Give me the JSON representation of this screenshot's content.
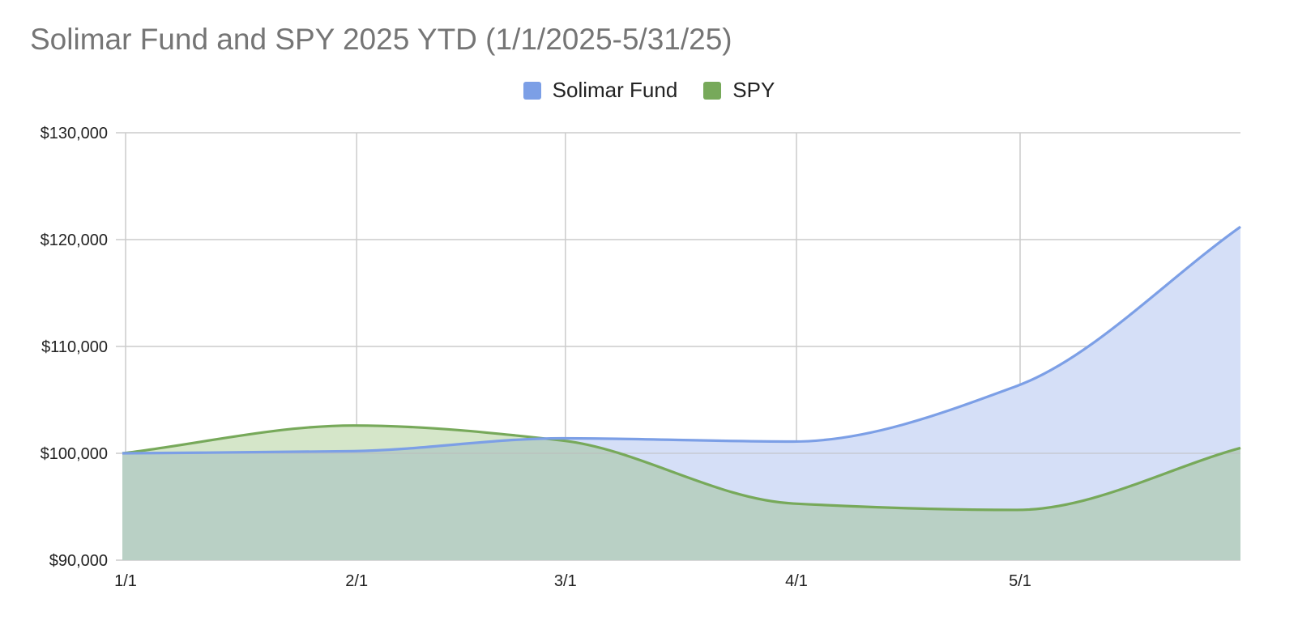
{
  "chart_data": {
    "type": "area",
    "title": "Solimar Fund and SPY 2025 YTD (1/1/2025-5/31/25)",
    "xlabel": "",
    "ylabel": "",
    "x_dates": [
      "2025-01-01",
      "2025-02-01",
      "2025-03-01",
      "2025-04-01",
      "2025-05-01",
      "2025-05-31"
    ],
    "x_ticks": [
      {
        "date": "2025-01-01",
        "label": "1/1"
      },
      {
        "date": "2025-02-01",
        "label": "2/1"
      },
      {
        "date": "2025-03-01",
        "label": "3/1"
      },
      {
        "date": "2025-04-01",
        "label": "4/1"
      },
      {
        "date": "2025-05-01",
        "label": "5/1"
      }
    ],
    "y_ticks": [
      {
        "value": 90000,
        "label": "$90,000"
      },
      {
        "value": 100000,
        "label": "$100,000"
      },
      {
        "value": 110000,
        "label": "$110,000"
      },
      {
        "value": 120000,
        "label": "$120,000"
      },
      {
        "value": 130000,
        "label": "$130,000"
      }
    ],
    "ylim": [
      90000,
      130000
    ],
    "grid": true,
    "legend_position": "top",
    "series": [
      {
        "name": "Solimar Fund",
        "color": "#7c9fe6",
        "fill": "#d5dff7",
        "values": [
          100000,
          100200,
          101400,
          101100,
          106300,
          121200
        ]
      },
      {
        "name": "SPY",
        "color": "#77a95a",
        "fill": "#d5e6c9",
        "values": [
          100000,
          102600,
          101200,
          95300,
          94700,
          100500
        ]
      }
    ],
    "overlap_fill": "#b9d0c5"
  }
}
